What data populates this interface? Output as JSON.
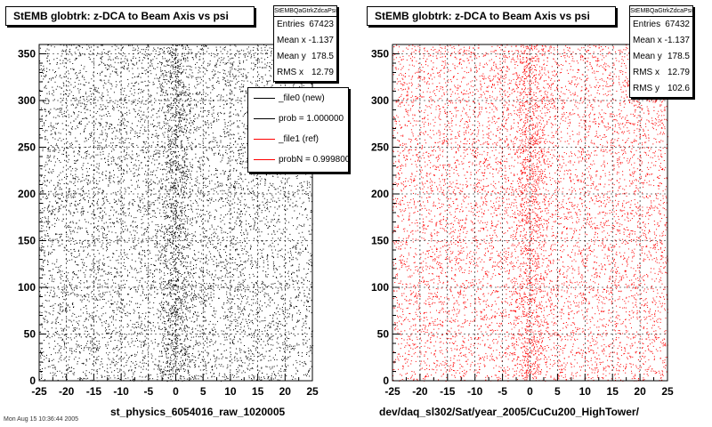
{
  "chart_data": [
    {
      "type": "scatter",
      "title": "StEMB globtrk: z-DCA to Beam Axis vs psi",
      "xlabel": "st_physics_6054016_raw_1020005",
      "ylabel": "",
      "xlim": [
        -25,
        25
      ],
      "ylim": [
        0,
        360
      ],
      "xticks": [
        "-25",
        "-20",
        "-15",
        "-10",
        "-5",
        "0",
        "5",
        "10",
        "15",
        "20",
        "25"
      ],
      "yticks": [
        "0",
        "50",
        "100",
        "150",
        "200",
        "250",
        "300",
        "350"
      ],
      "grid": true,
      "marker_color": "#000000",
      "stats": {
        "name": "StEMBQaGtrkZdcaPsi",
        "entries_label": "Entries",
        "entries": "67423",
        "meanx_label": "Mean x",
        "meanx": "-1.137",
        "meany_label": "Mean y",
        "meany": "178.5",
        "rmsx_label": "RMS x",
        "rmsx": "12.79"
      },
      "legend": {
        "placement": "top-right",
        "entries": [
          {
            "label": "_file0 (new)",
            "color": "#000000"
          },
          {
            "label": "prob = 1.000000",
            "color": "#000000"
          },
          {
            "label": "_file1 (ref)",
            "color": "#ff0000"
          },
          {
            "label": "probN = 0.999800",
            "color": "#ff0000"
          }
        ]
      }
    },
    {
      "type": "scatter",
      "title": "StEMB globtrk: z-DCA to Beam Axis vs psi",
      "xlabel": "dev/daq_sl302/Sat/year_2005/CuCu200_HighTower/",
      "ylabel": "",
      "xlim": [
        -25,
        25
      ],
      "ylim": [
        0,
        360
      ],
      "xticks": [
        "-25",
        "-20",
        "-15",
        "-10",
        "-5",
        "0",
        "5",
        "10",
        "15",
        "20",
        "25"
      ],
      "yticks": [
        "0",
        "50",
        "100",
        "150",
        "200",
        "250",
        "300",
        "350"
      ],
      "grid": true,
      "marker_color": "#ff0000",
      "stats": {
        "name": "StEMBQaGtrkZdcaPsi",
        "entries_label": "Entries",
        "entries": "67432",
        "meanx_label": "Mean x",
        "meanx": "-1.137",
        "meany_label": "Mean y",
        "meany": "178.5",
        "rmsx_label": "RMS x",
        "rmsx": "12.79",
        "rmsy_label": "RMS y",
        "rmsy": "102.6"
      }
    }
  ],
  "footer": "Mon Aug 15 10:36:44 2005"
}
